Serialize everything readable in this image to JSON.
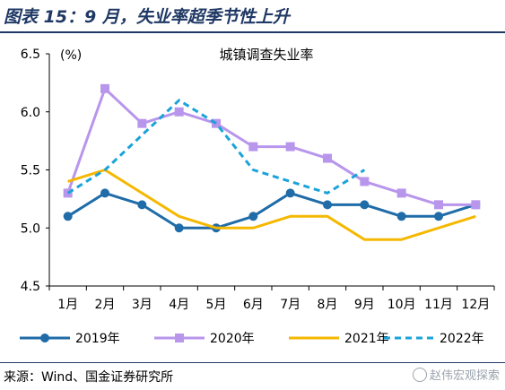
{
  "header": {
    "title": "图表 15：9 月，失业率超季节性上升"
  },
  "footer": {
    "source": "来源：Wind、国金证券研究所",
    "watermark": "赵伟宏观探索"
  },
  "chart_data": {
    "type": "line",
    "title": "城镇调查失业率",
    "unit_label": "(%)",
    "xlabel": "",
    "ylabel": "",
    "categories": [
      "1月",
      "2月",
      "3月",
      "4月",
      "5月",
      "6月",
      "7月",
      "8月",
      "9月",
      "10月",
      "11月",
      "12月"
    ],
    "ylim": [
      4.5,
      6.5
    ],
    "yticks": [
      "4.5",
      "5.0",
      "5.5",
      "6.0",
      "6.5"
    ],
    "grid": false,
    "legend_position": "bottom",
    "series": [
      {
        "name": "2019年",
        "color": "#1f6ca8",
        "style": "solid-marker",
        "values": [
          5.1,
          5.3,
          5.2,
          5.0,
          5.0,
          5.1,
          5.3,
          5.2,
          5.2,
          5.1,
          5.1,
          5.2
        ]
      },
      {
        "name": "2020年",
        "color": "#b896ec",
        "style": "solid-square",
        "values": [
          5.3,
          6.2,
          5.9,
          6.0,
          5.9,
          5.7,
          5.7,
          5.6,
          5.4,
          5.3,
          5.2,
          5.2
        ]
      },
      {
        "name": "2021年",
        "color": "#f5b800",
        "style": "solid",
        "values": [
          5.4,
          5.5,
          5.3,
          5.1,
          5.0,
          5.0,
          5.1,
          5.1,
          4.9,
          4.9,
          5.0,
          5.1
        ]
      },
      {
        "name": "2022年",
        "color": "#1aa3d9",
        "style": "dashed",
        "values": [
          5.3,
          5.5,
          5.8,
          6.1,
          5.9,
          5.5,
          5.4,
          5.3,
          5.5,
          null,
          null,
          null
        ]
      }
    ]
  }
}
